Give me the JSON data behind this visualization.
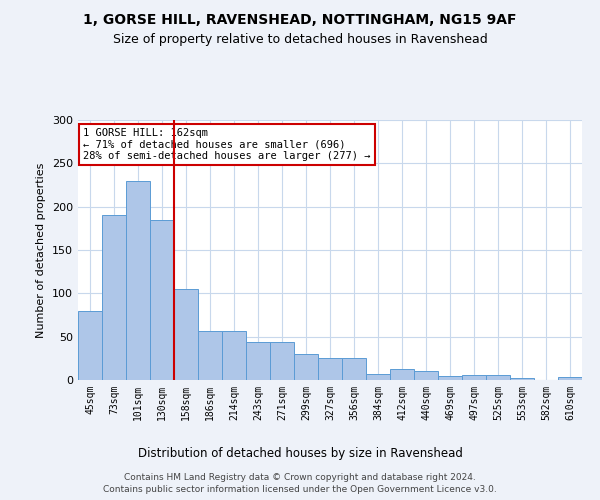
{
  "title1": "1, GORSE HILL, RAVENSHEAD, NOTTINGHAM, NG15 9AF",
  "title2": "Size of property relative to detached houses in Ravenshead",
  "xlabel": "Distribution of detached houses by size in Ravenshead",
  "ylabel": "Number of detached properties",
  "categories": [
    "45sqm",
    "73sqm",
    "101sqm",
    "130sqm",
    "158sqm",
    "186sqm",
    "214sqm",
    "243sqm",
    "271sqm",
    "299sqm",
    "327sqm",
    "356sqm",
    "384sqm",
    "412sqm",
    "440sqm",
    "469sqm",
    "497sqm",
    "525sqm",
    "553sqm",
    "582sqm",
    "610sqm"
  ],
  "values": [
    80,
    190,
    230,
    185,
    105,
    57,
    57,
    44,
    44,
    30,
    25,
    25,
    7,
    13,
    10,
    5,
    6,
    6,
    2,
    0,
    3
  ],
  "bar_color": "#aec6e8",
  "bar_edge_color": "#5b9bd5",
  "highlight_line_color": "#cc0000",
  "annotation_text": "1 GORSE HILL: 162sqm\n← 71% of detached houses are smaller (696)\n28% of semi-detached houses are larger (277) →",
  "annotation_box_color": "#cc0000",
  "ylim": [
    0,
    300
  ],
  "yticks": [
    0,
    50,
    100,
    150,
    200,
    250,
    300
  ],
  "footer": "Contains HM Land Registry data © Crown copyright and database right 2024.\nContains public sector information licensed under the Open Government Licence v3.0.",
  "bg_color": "#eef2f9",
  "plot_bg_color": "#ffffff",
  "grid_color": "#c8d8ec"
}
